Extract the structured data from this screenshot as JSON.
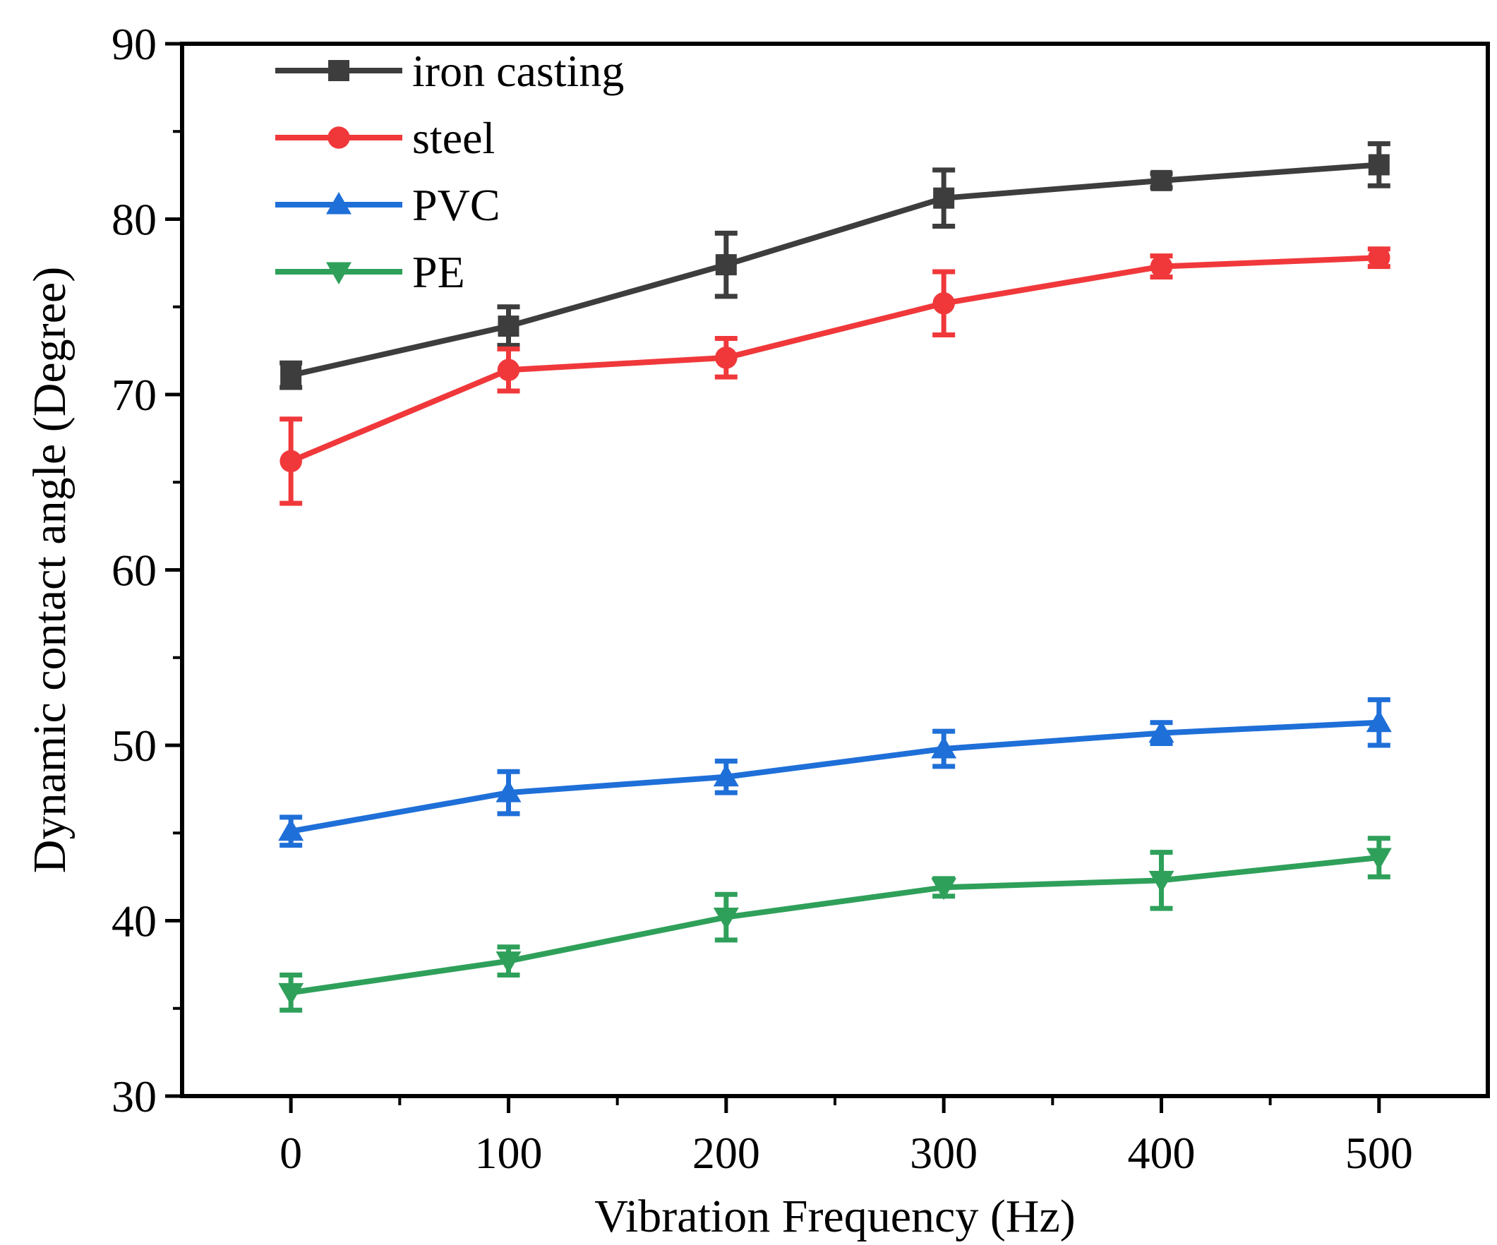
{
  "chart_data": {
    "type": "line",
    "title": "",
    "xlabel": "Vibration Frequency (Hz)",
    "ylabel": "Dynamic contact angle (Degree)",
    "x": [
      0,
      100,
      200,
      300,
      400,
      500
    ],
    "xlim": [
      -50,
      550
    ],
    "ylim": [
      30,
      90
    ],
    "xticks": [
      0,
      100,
      200,
      300,
      400,
      500
    ],
    "yticks": [
      30,
      40,
      50,
      60,
      70,
      80,
      90
    ],
    "grid": false,
    "legend_position": "top-left",
    "series": [
      {
        "name": "iron casting",
        "color": "#3d3d3d",
        "marker": "square",
        "values": [
          71.1,
          73.9,
          77.4,
          81.2,
          82.2,
          83.1
        ],
        "errors": [
          0.7,
          1.1,
          1.8,
          1.6,
          0.4,
          1.2
        ]
      },
      {
        "name": "steel",
        "color": "#f0383b",
        "marker": "circle",
        "values": [
          66.2,
          71.4,
          72.1,
          75.2,
          77.3,
          77.8
        ],
        "errors": [
          2.4,
          1.2,
          1.1,
          1.8,
          0.6,
          0.5
        ]
      },
      {
        "name": "PVC",
        "color": "#1f6fd8",
        "marker": "triangle-up",
        "values": [
          45.1,
          47.3,
          48.2,
          49.8,
          50.7,
          51.3
        ],
        "errors": [
          0.8,
          1.2,
          0.9,
          1.0,
          0.6,
          1.3
        ]
      },
      {
        "name": "PE",
        "color": "#2fa05a",
        "marker": "triangle-down",
        "values": [
          35.9,
          37.7,
          40.2,
          41.9,
          42.3,
          43.6
        ],
        "errors": [
          1.0,
          0.8,
          1.3,
          0.5,
          1.6,
          1.1
        ]
      }
    ]
  }
}
